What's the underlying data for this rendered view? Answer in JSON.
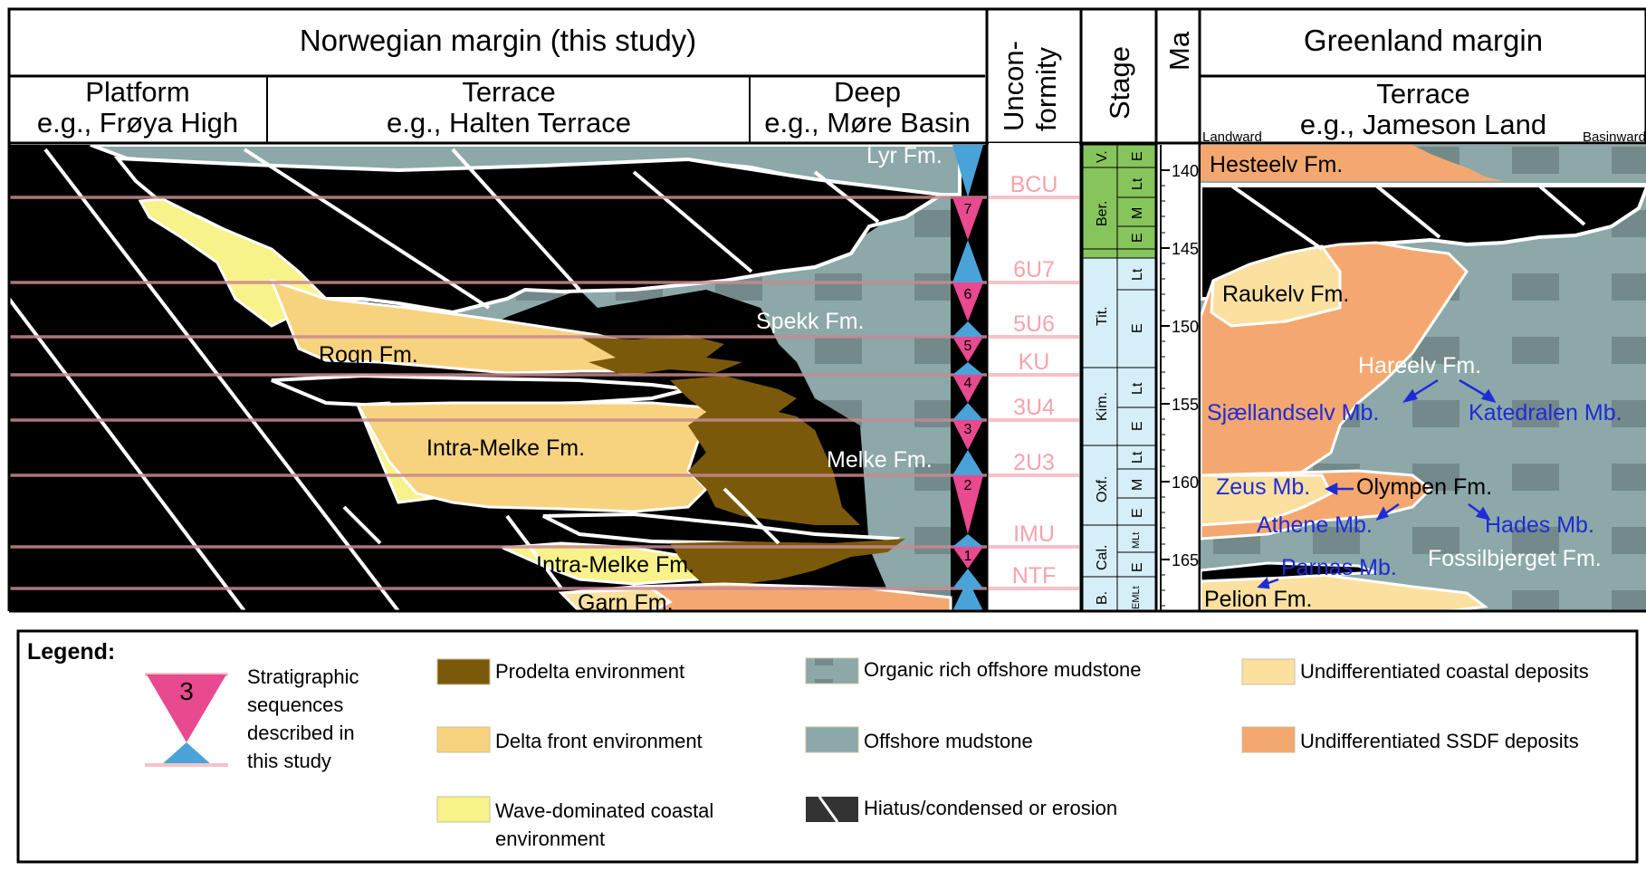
{
  "header": {
    "norway_title": "Norwegian margin (this study)",
    "platform": "Platform",
    "platform_eg": "e.g., Frøya High",
    "terrace": "Terrace",
    "terrace_eg": "e.g., Halten Terrace",
    "deep": "Deep",
    "deep_eg": "e.g., Møre Basin",
    "unconformity_1": "Uncon-",
    "unconformity_2": "formity",
    "stage": "Stage",
    "ma": "Ma",
    "greenland_title": "Greenland margin",
    "gl_terrace": "Terrace",
    "gl_terrace_eg": "e.g., Jameson Land",
    "landward": "Landward",
    "basinward": "Basinward"
  },
  "norway_formations": {
    "lyr": "Lyr Fm.",
    "spekk": "Spekk Fm.",
    "rogn": "Rogn Fm.",
    "intra_melke_upper": "Intra-Melke Fm.",
    "melke": "Melke Fm.",
    "intra_melke_lower": "Intra-Melke Fm.",
    "garn": "Garn Fm."
  },
  "unconformities": [
    "BCU",
    "6U7",
    "5U6",
    "KU",
    "3U4",
    "2U3",
    "IMU",
    "NTF"
  ],
  "sequences": [
    "7",
    "6",
    "5",
    "4",
    "3",
    "2",
    "1"
  ],
  "stages": [
    {
      "name": "V.",
      "subs": [
        "E"
      ]
    },
    {
      "name": "Ber.",
      "subs": [
        "Lt",
        "M",
        "E"
      ]
    },
    {
      "name": "Tit.",
      "subs": [
        "Lt",
        "E"
      ]
    },
    {
      "name": "Kim.",
      "subs": [
        "Lt",
        "E"
      ]
    },
    {
      "name": "Oxf.",
      "subs": [
        "Lt",
        "M",
        "E"
      ]
    },
    {
      "name": "Cal.",
      "subs": [
        "MLt",
        "E"
      ]
    },
    {
      "name": "B.",
      "subs": [
        "EMLt"
      ]
    }
  ],
  "ma_ticks": [
    "140",
    "145",
    "150",
    "155",
    "160",
    "165"
  ],
  "greenland_formations": {
    "hesteelv": "Hesteelv Fm.",
    "raukelv": "Raukelv Fm.",
    "hareelv": "Hareelv Fm.",
    "sjaellandselv": "Sjællandselv Mb.",
    "katedralen": "Katedralen Mb.",
    "zeus": "Zeus Mb.",
    "olympen": "Olympen Fm.",
    "athene": "Athene Mb.",
    "hades": "Hades Mb.",
    "fossilbjerget": "Fossilbjerget Fm.",
    "parnas": "Parnas Mb.",
    "pelion": "Pelion Fm."
  },
  "legend": {
    "title": "Legend:",
    "seq_number": "3",
    "seq_text": [
      "Stratigraphic",
      "sequences",
      "described in",
      "this study"
    ],
    "items": [
      {
        "label": "Prodelta environment",
        "color": "#7a5a0a"
      },
      {
        "label": "Delta front environment",
        "color": "#f8d37f"
      },
      {
        "label_1": "Wave-dominated coastal",
        "label_2": "environment",
        "color": "#f8f28a"
      },
      {
        "label": "Organic rich offshore mudstone",
        "color": "#8ba4a4"
      },
      {
        "label": "Offshore mudstone",
        "color": "#8ba4a4"
      },
      {
        "label": "Hiatus/condensed or erosion",
        "color": "#333333"
      },
      {
        "label": "Undifferentiated coastal deposits",
        "color": "#fbe0a0"
      },
      {
        "label": "Undifferentiated SSDF deposits",
        "color": "#f4a870"
      }
    ]
  },
  "colors": {
    "offshore_mud": "#8ca8a8",
    "organic_blocks": "#74898a",
    "prodelta": "#7a5a0a",
    "delta_front": "#f8d37f",
    "wave_coastal": "#f8f28a",
    "coastal": "#fbe0a0",
    "ssdf": "#f4a870",
    "hiatus": "#000000",
    "unconformity_line": "#f6a3ad",
    "seq_pink": "#e8498f",
    "seq_blue": "#4aa3d8",
    "stage_green": "#86c55c",
    "stage_blue": "#d6eef7",
    "member_blue": "#1f2bd6"
  }
}
